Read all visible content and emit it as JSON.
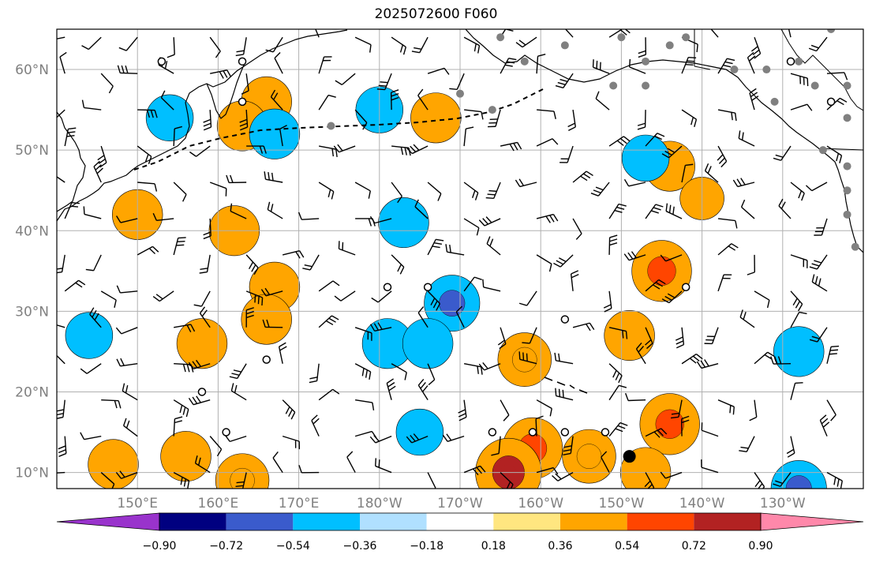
{
  "title": "2025072600 F060",
  "map": {
    "lon_range": [
      140,
      240
    ],
    "lat_range": [
      8,
      65
    ],
    "lon_ticks": [
      150,
      160,
      170,
      180,
      190,
      200,
      210,
      220,
      230
    ],
    "lat_ticks": [
      10,
      20,
      30,
      40,
      50,
      60
    ],
    "lon_labels": [
      "150°E",
      "160°E",
      "170°E",
      "180°W",
      "170°W",
      "160°W",
      "150°W",
      "140°W",
      "130°W"
    ],
    "lat_labels": [
      "10°N",
      "20°N",
      "30°N",
      "40°N",
      "50°N",
      "60°N"
    ],
    "grid": true
  },
  "colorbar": {
    "colors": [
      "#9933cc",
      "#000080",
      "#3a5bcc",
      "#00bfff",
      "#b0e0ff",
      "#ffffff",
      "#ffe680",
      "#ffa500",
      "#ff4500",
      "#b22222",
      "#ff88aa"
    ],
    "labels": [
      "−0.90",
      "−0.72",
      "−0.54",
      "−0.36",
      "−0.18",
      "0.18",
      "0.36",
      "0.54",
      "0.72",
      "0.90"
    ]
  },
  "chart_data": {
    "type": "map",
    "field_blobs": [
      {
        "lon": 163,
        "lat": 9,
        "level": 0.54
      },
      {
        "lon": 156,
        "lat": 12,
        "level": 0.45
      },
      {
        "lon": 150,
        "lat": 42,
        "level": 0.45
      },
      {
        "lon": 162,
        "lat": 40,
        "level": 0.45
      },
      {
        "lon": 166,
        "lat": 56,
        "level": 0.45
      },
      {
        "lon": 163,
        "lat": 53,
        "level": 0.45
      },
      {
        "lon": 187,
        "lat": 54,
        "level": 0.45
      },
      {
        "lon": 167,
        "lat": 33,
        "level": 0.45
      },
      {
        "lon": 166,
        "lat": 29,
        "level": 0.45
      },
      {
        "lon": 158,
        "lat": 26,
        "level": 0.45
      },
      {
        "lon": 147,
        "lat": 11,
        "level": 0.45
      },
      {
        "lon": 198,
        "lat": 24,
        "level": 0.54
      },
      {
        "lon": 199,
        "lat": 13,
        "level": 0.72
      },
      {
        "lon": 196,
        "lat": 10,
        "level": 0.9
      },
      {
        "lon": 206,
        "lat": 12,
        "level": 0.54
      },
      {
        "lon": 215,
        "lat": 35,
        "level": 0.72
      },
      {
        "lon": 211,
        "lat": 27,
        "level": 0.45
      },
      {
        "lon": 216,
        "lat": 16,
        "level": 0.72
      },
      {
        "lon": 216,
        "lat": 48,
        "level": 0.45
      },
      {
        "lon": 213,
        "lat": 10,
        "level": 0.45
      },
      {
        "lon": 220,
        "lat": 44,
        "level": 0.27
      },
      {
        "lon": 189,
        "lat": 31,
        "level": -0.6
      },
      {
        "lon": 183,
        "lat": 41,
        "level": -0.45
      },
      {
        "lon": 181,
        "lat": 26,
        "level": -0.45
      },
      {
        "lon": 186,
        "lat": 26,
        "level": -0.45
      },
      {
        "lon": 167,
        "lat": 52,
        "level": -0.45
      },
      {
        "lon": 180,
        "lat": 55,
        "level": -0.36
      },
      {
        "lon": 154,
        "lat": 54,
        "level": -0.36
      },
      {
        "lon": 213,
        "lat": 49,
        "level": -0.36
      },
      {
        "lon": 232,
        "lat": 25,
        "level": -0.45
      },
      {
        "lon": 232,
        "lat": 8,
        "level": -0.6
      },
      {
        "lon": 185,
        "lat": 15,
        "level": -0.36
      },
      {
        "lon": 144,
        "lat": 27,
        "level": -0.36
      }
    ],
    "station_markers": {
      "open_circles": [
        [
          153,
          61
        ],
        [
          163,
          61
        ],
        [
          163,
          56
        ],
        [
          181,
          33
        ],
        [
          186,
          33
        ],
        [
          218,
          33
        ],
        [
          203,
          29
        ],
        [
          166,
          24
        ],
        [
          158,
          20
        ],
        [
          161,
          15
        ],
        [
          194,
          15
        ],
        [
          199,
          15
        ],
        [
          203,
          15
        ],
        [
          208,
          15
        ],
        [
          231,
          61
        ],
        [
          236,
          56
        ]
      ],
      "grey_dots": [
        [
          195,
          64
        ],
        [
          203,
          63
        ],
        [
          210,
          64
        ],
        [
          216,
          63
        ],
        [
          198,
          61
        ],
        [
          209,
          58
        ],
        [
          213,
          61
        ],
        [
          213,
          58
        ],
        [
          190,
          57
        ],
        [
          194,
          55
        ],
        [
          224,
          60
        ],
        [
          228,
          60
        ],
        [
          232,
          61
        ],
        [
          234,
          58
        ],
        [
          238,
          58
        ],
        [
          229,
          56
        ],
        [
          238,
          54
        ],
        [
          235,
          50
        ],
        [
          238,
          48
        ],
        [
          238,
          45
        ],
        [
          238,
          42
        ],
        [
          239,
          38
        ],
        [
          174,
          53
        ],
        [
          218,
          64
        ],
        [
          236,
          65
        ]
      ],
      "filled_black": [
        [
          211,
          12
        ]
      ]
    }
  }
}
